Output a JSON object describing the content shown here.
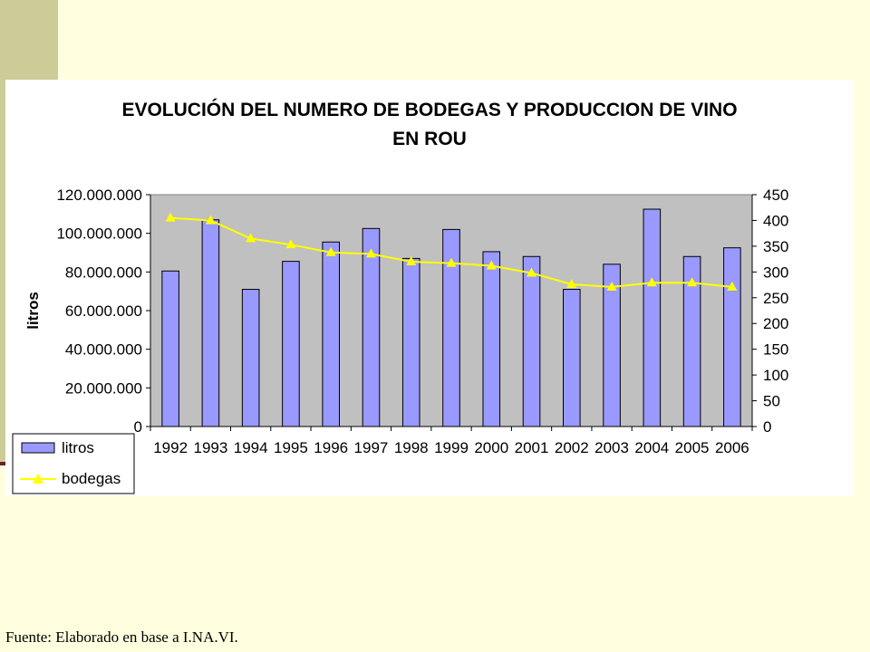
{
  "source": "Fuente: Elaborado en base a I.NA.VI.",
  "chart_data": {
    "type": "bar",
    "title_lines": [
      "EVOLUCIÓN DEL NUMERO DE BODEGAS Y PRODUCCION DE VINO",
      "EN ROU"
    ],
    "ylabel": "litros",
    "categories": [
      "1992",
      "1993",
      "1994",
      "1995",
      "1996",
      "1997",
      "1998",
      "1999",
      "2000",
      "2001",
      "2002",
      "2003",
      "2004",
      "2005",
      "2006"
    ],
    "ylim_left": [
      0,
      120000000
    ],
    "yticks_left": [
      "0",
      "20.000.000",
      "40.000.000",
      "60.000.000",
      "80.000.000",
      "100.000.000",
      "120.000.000"
    ],
    "ylim_right": [
      0,
      450
    ],
    "yticks_right": [
      "0",
      "50",
      "100",
      "150",
      "200",
      "250",
      "300",
      "350",
      "400",
      "450"
    ],
    "grid": false,
    "legend_position": "bottom-left",
    "colors": {
      "bars": "#9999ff",
      "line": "#ffff00",
      "plot_bg": "#c0c0c0"
    },
    "series": [
      {
        "name": "litros",
        "type": "bar",
        "axis": "left",
        "values": [
          80500000,
          107000000,
          71000000,
          85500000,
          95500000,
          102500000,
          87000000,
          102000000,
          90500000,
          88000000,
          71000000,
          84000000,
          112500000,
          88000000,
          92500000
        ]
      },
      {
        "name": "bodegas",
        "type": "line",
        "marker": "triangle",
        "axis": "right",
        "values": [
          405,
          400,
          365,
          353,
          338,
          335,
          320,
          317,
          312,
          298,
          276,
          271,
          279,
          279,
          271
        ]
      }
    ]
  }
}
